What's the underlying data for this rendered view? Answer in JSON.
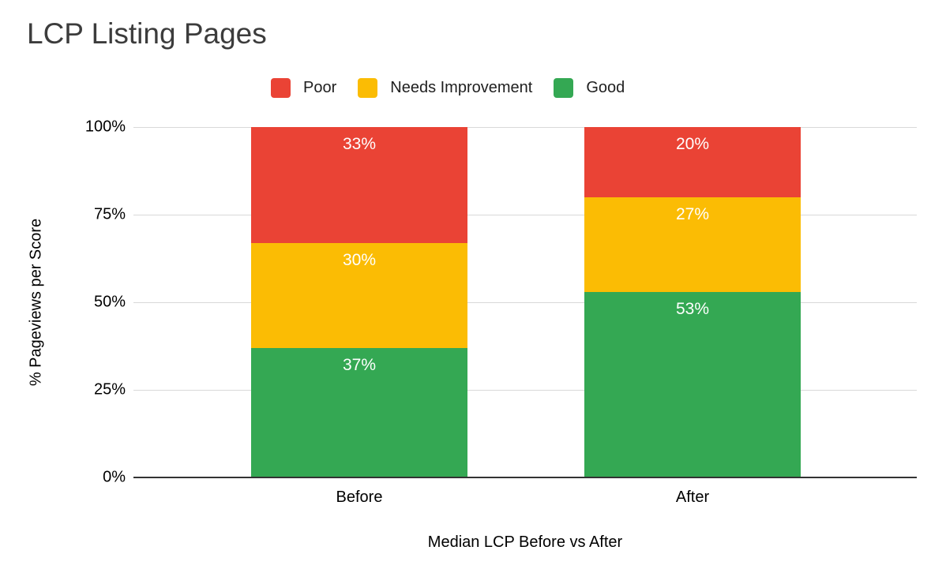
{
  "title": "LCP Listing Pages",
  "y_axis": {
    "title": "% Pageviews per Score",
    "ticks": [
      "0%",
      "25%",
      "50%",
      "75%",
      "100%"
    ]
  },
  "x_axis": {
    "title": "Median LCP Before vs After",
    "categories": [
      "Before",
      "After"
    ]
  },
  "chart_data": {
    "type": "bar",
    "stacked": true,
    "categories": [
      "Before",
      "After"
    ],
    "series": [
      {
        "name": "Poor",
        "color": "#EA4335",
        "values": [
          33,
          20
        ],
        "labels": [
          "33%",
          "20%"
        ]
      },
      {
        "name": "Needs Improvement",
        "color": "#FBBC04",
        "values": [
          30,
          27
        ],
        "labels": [
          "30%",
          "27%"
        ]
      },
      {
        "name": "Good",
        "color": "#34A853",
        "values": [
          37,
          53
        ],
        "labels": [
          "37%",
          "53%"
        ]
      }
    ],
    "title": "LCP Listing Pages",
    "xlabel": "Median LCP Before vs After",
    "ylabel": "% Pageviews per Score",
    "ylim": [
      0,
      100
    ],
    "yticks": [
      0,
      25,
      50,
      75,
      100
    ],
    "grid": true,
    "legend_position": "top",
    "data_label_color": "#FFFFFF"
  },
  "colors": {
    "background": "#FFFFFF",
    "gridline": "#D9D9D9",
    "axis_baseline": "#333333",
    "title_text": "#3C3C3C",
    "tick_text": "#000000",
    "legend_text": "#1F1F1F"
  }
}
